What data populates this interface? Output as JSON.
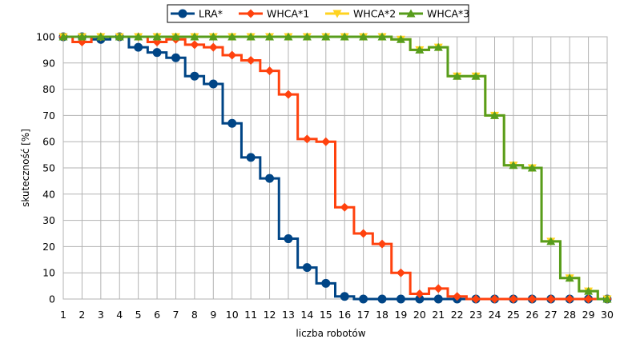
{
  "chart_data": {
    "type": "line",
    "step": true,
    "xlabel": "liczba robotów",
    "ylabel": "skuteczność [%]",
    "xlim": [
      1,
      30
    ],
    "ylim": [
      0,
      100
    ],
    "x": [
      1,
      2,
      3,
      4,
      5,
      6,
      7,
      8,
      9,
      10,
      11,
      12,
      13,
      14,
      15,
      16,
      17,
      18,
      19,
      20,
      21,
      22,
      23,
      24,
      25,
      26,
      27,
      28,
      29,
      30
    ],
    "yticks": [
      0,
      10,
      20,
      30,
      40,
      50,
      60,
      70,
      80,
      90,
      100
    ],
    "grid": true,
    "legend_position": "top",
    "series": [
      {
        "name": "LRA*",
        "color": "#004586",
        "marker": "circle",
        "values": [
          100,
          100,
          99,
          100,
          96,
          94,
          92,
          85,
          82,
          67,
          54,
          46,
          23,
          12,
          6,
          1,
          0,
          0,
          0,
          0,
          0,
          0,
          0,
          0,
          0,
          0,
          0,
          0,
          0,
          0
        ]
      },
      {
        "name": "WHCA*1",
        "color": "#ff420e",
        "marker": "diamond",
        "values": [
          100,
          98,
          100,
          100,
          100,
          98,
          99,
          97,
          96,
          93,
          91,
          87,
          78,
          61,
          60,
          35,
          25,
          21,
          10,
          2,
          4,
          1,
          0,
          0,
          0,
          0,
          0,
          0,
          0,
          0
        ]
      },
      {
        "name": "WHCA*2",
        "color": "#ffd320",
        "marker": "triangle-down",
        "values": [
          100,
          100,
          100,
          100,
          100,
          100,
          100,
          100,
          100,
          100,
          100,
          100,
          100,
          100,
          100,
          100,
          100,
          100,
          99,
          95,
          96,
          85,
          85,
          70,
          51,
          50,
          22,
          8,
          3,
          0
        ]
      },
      {
        "name": "WHCA*3",
        "color": "#579d1c",
        "marker": "triangle-up",
        "values": [
          100,
          100,
          100,
          100,
          100,
          100,
          100,
          100,
          100,
          100,
          100,
          100,
          100,
          100,
          100,
          100,
          100,
          100,
          99,
          95,
          96,
          85,
          85,
          70,
          51,
          50,
          22,
          8,
          3,
          0
        ]
      }
    ]
  }
}
